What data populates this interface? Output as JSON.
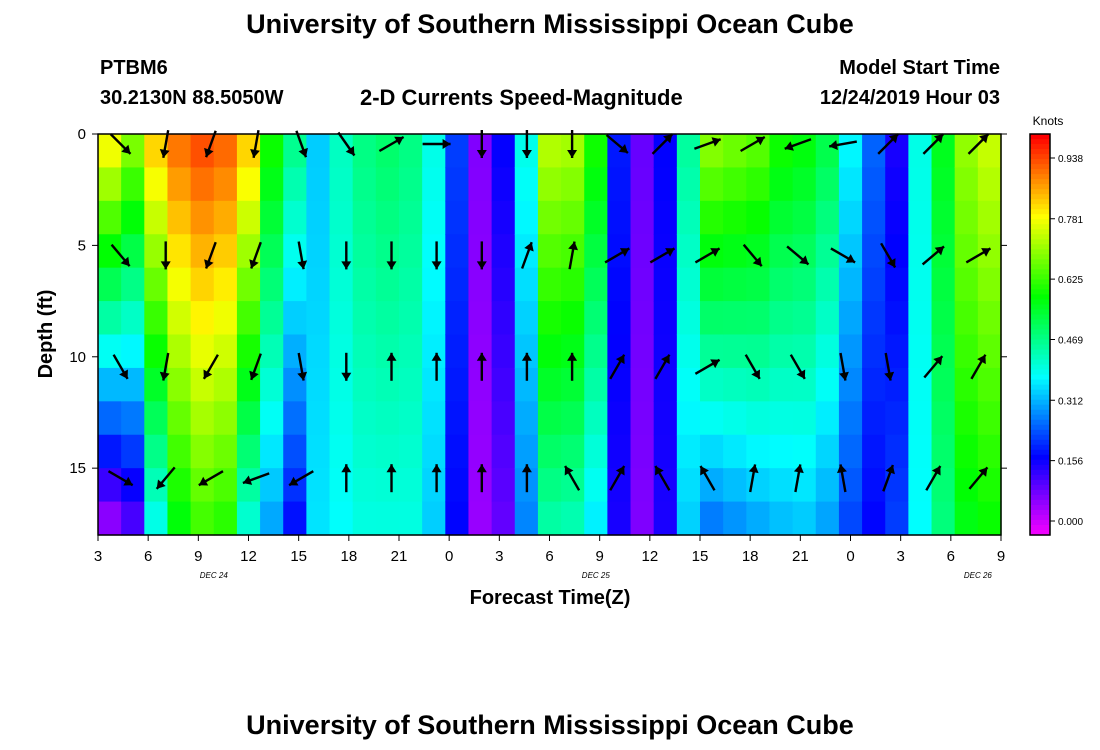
{
  "header": {
    "title": "University of Southern Mississippi Ocean Cube",
    "station": "PTBM6",
    "coords": "30.2130N 88.5050W",
    "subtitle": "2-D Currents Speed-Magnitude",
    "model_label": "Model Start Time",
    "model_time": "12/24/2019 Hour 03"
  },
  "footer": {
    "title": "University of Southern Mississippi Ocean Cube"
  },
  "colorbar": {
    "title": "Knots",
    "ticks": [
      "0.000",
      "0.156",
      "0.312",
      "0.469",
      "0.625",
      "0.781",
      "0.938"
    ]
  },
  "chart_data": {
    "type": "heatmap",
    "title": "2-D Currents Speed-Magnitude",
    "xlabel": "Forecast Time(Z)",
    "ylabel": "Depth (ft)",
    "x_tick_labels": [
      "3",
      "6",
      "9",
      "12",
      "15",
      "18",
      "21",
      "0",
      "3",
      "6",
      "9",
      "12",
      "15",
      "18",
      "21",
      "0",
      "3",
      "6",
      "9"
    ],
    "day_labels": [
      {
        "label": "DEC 24",
        "hour_index": 5
      },
      {
        "label": "DEC 25",
        "hour_index": 21.5
      },
      {
        "label": "DEC 26",
        "hour_index": 38
      }
    ],
    "y_ticks": [
      0,
      5,
      10,
      15
    ],
    "ylim": [
      0,
      18
    ],
    "y_inverted": true,
    "color_scale": {
      "min": 0.0,
      "max": 1.0,
      "units": "Knots",
      "colormap": "rainbow (magenta-blue-cyan-green-yellow-orange-red)"
    },
    "depths_ft": [
      0,
      1.5,
      3,
      4.5,
      6,
      7.5,
      9,
      10.5,
      12,
      13.5,
      15,
      16.5,
      18
    ],
    "speed_profiles": [
      {
        "hour_index": 0,
        "top": 0.82,
        "bottom": 0.06
      },
      {
        "hour_index": 1,
        "top": 0.72,
        "bottom": 0.12
      },
      {
        "hour_index": 2,
        "top": 0.85,
        "bottom": 0.4
      },
      {
        "hour_index": 3,
        "top": 0.92,
        "bottom": 0.58
      },
      {
        "hour_index": 4,
        "top": 0.95,
        "bottom": 0.64
      },
      {
        "hour_index": 5,
        "top": 0.93,
        "bottom": 0.62
      },
      {
        "hour_index": 6,
        "top": 0.85,
        "bottom": 0.42
      },
      {
        "hour_index": 7,
        "top": 0.62,
        "bottom": 0.32
      },
      {
        "hour_index": 8,
        "top": 0.5,
        "bottom": 0.2
      },
      {
        "hour_index": 9,
        "top": 0.36,
        "bottom": 0.38
      },
      {
        "hour_index": 10,
        "top": 0.45,
        "bottom": 0.4
      },
      {
        "hour_index": 11,
        "top": 0.5,
        "bottom": 0.42
      },
      {
        "hour_index": 12,
        "top": 0.52,
        "bottom": 0.42
      },
      {
        "hour_index": 13,
        "top": 0.5,
        "bottom": 0.42
      },
      {
        "hour_index": 14,
        "top": 0.42,
        "bottom": 0.36
      },
      {
        "hour_index": 15,
        "top": 0.25,
        "bottom": 0.2
      },
      {
        "hour_index": 16,
        "top": 0.1,
        "bottom": 0.08
      },
      {
        "hour_index": 17,
        "top": 0.2,
        "bottom": 0.12
      },
      {
        "hour_index": 18,
        "top": 0.42,
        "bottom": 0.3
      },
      {
        "hour_index": 19,
        "top": 0.75,
        "bottom": 0.46
      },
      {
        "hour_index": 20,
        "top": 0.74,
        "bottom": 0.45
      },
      {
        "hour_index": 21,
        "top": 0.62,
        "bottom": 0.38
      },
      {
        "hour_index": 22,
        "top": 0.22,
        "bottom": 0.18
      },
      {
        "hour_index": 23,
        "top": 0.12,
        "bottom": 0.1
      },
      {
        "hour_index": 24,
        "top": 0.2,
        "bottom": 0.18
      },
      {
        "hour_index": 25,
        "top": 0.48,
        "bottom": 0.36
      },
      {
        "hour_index": 26,
        "top": 0.72,
        "bottom": 0.28
      },
      {
        "hour_index": 27,
        "top": 0.7,
        "bottom": 0.3
      },
      {
        "hour_index": 28,
        "top": 0.68,
        "bottom": 0.32
      },
      {
        "hour_index": 29,
        "top": 0.62,
        "bottom": 0.34
      },
      {
        "hour_index": 30,
        "top": 0.6,
        "bottom": 0.35
      },
      {
        "hour_index": 31,
        "top": 0.55,
        "bottom": 0.32
      },
      {
        "hour_index": 32,
        "top": 0.4,
        "bottom": 0.25
      },
      {
        "hour_index": 33,
        "top": 0.28,
        "bottom": 0.2
      },
      {
        "hour_index": 34,
        "top": 0.18,
        "bottom": 0.25
      },
      {
        "hour_index": 35,
        "top": 0.42,
        "bottom": 0.4
      },
      {
        "hour_index": 36,
        "top": 0.58,
        "bottom": 0.5
      },
      {
        "hour_index": 37,
        "top": 0.72,
        "bottom": 0.58
      },
      {
        "hour_index": 38,
        "top": 0.76,
        "bottom": 0.6
      }
    ],
    "current_direction_rows": [
      {
        "depth_ft": 0,
        "heading_deg": [
          135,
          190,
          200,
          190,
          160,
          145,
          60,
          90,
          180,
          180,
          180,
          130,
          45,
          70,
          60,
          250,
          260,
          45,
          45,
          45
        ]
      },
      {
        "depth_ft": 5,
        "heading_deg": [
          140,
          180,
          200,
          200,
          170,
          180,
          180,
          180,
          180,
          20,
          10,
          60,
          60,
          60,
          140,
          130,
          120,
          150,
          50,
          60
        ]
      },
      {
        "depth_ft": 10,
        "heading_deg": [
          150,
          190,
          210,
          200,
          170,
          180,
          0,
          0,
          0,
          0,
          0,
          30,
          30,
          60,
          150,
          150,
          170,
          170,
          40,
          30
        ]
      },
      {
        "depth_ft": 15,
        "heading_deg": [
          120,
          220,
          240,
          250,
          240,
          0,
          0,
          0,
          0,
          0,
          330,
          30,
          330,
          330,
          10,
          10,
          350,
          20,
          30,
          40
        ]
      }
    ]
  }
}
